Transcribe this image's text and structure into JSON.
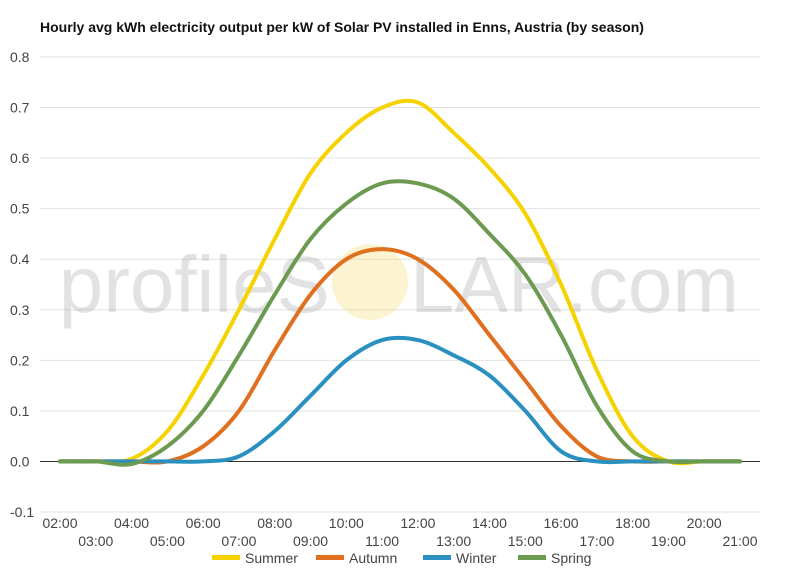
{
  "chart_data": {
    "type": "line",
    "title": "Hourly avg kWh electricity output per kW of Solar PV installed in Enns, Austria (by season)",
    "xlabel": "",
    "ylabel": "",
    "ylim": [
      -0.1,
      0.8
    ],
    "yticks": [
      "-0.1",
      "0.0",
      "0.1",
      "0.2",
      "0.3",
      "0.4",
      "0.5",
      "0.6",
      "0.7",
      "0.8"
    ],
    "x": [
      "02:00",
      "03:00",
      "04:00",
      "05:00",
      "06:00",
      "07:00",
      "08:00",
      "09:00",
      "10:00",
      "11:00",
      "12:00",
      "13:00",
      "14:00",
      "15:00",
      "16:00",
      "17:00",
      "18:00",
      "19:00",
      "20:00",
      "21:00"
    ],
    "grid": true,
    "legend": "bottom",
    "watermark": {
      "left": "profileS",
      "right": "LAR.com"
    },
    "series": [
      {
        "name": "Summer",
        "color": "#f5d200",
        "values": [
          0,
          0,
          0.005,
          0.06,
          0.17,
          0.3,
          0.44,
          0.57,
          0.65,
          0.7,
          0.71,
          0.65,
          0.58,
          0.49,
          0.35,
          0.18,
          0.05,
          0.0,
          0,
          0
        ]
      },
      {
        "name": "Autumn",
        "color": "#e07020",
        "values": [
          0,
          0,
          0,
          0,
          0.03,
          0.1,
          0.22,
          0.33,
          0.4,
          0.42,
          0.4,
          0.34,
          0.25,
          0.16,
          0.07,
          0.01,
          0,
          0,
          0,
          0
        ]
      },
      {
        "name": "Winter",
        "color": "#2a90c0",
        "values": [
          0,
          0,
          0,
          0,
          0,
          0.01,
          0.06,
          0.13,
          0.2,
          0.24,
          0.24,
          0.21,
          0.17,
          0.1,
          0.02,
          0,
          0,
          0,
          0,
          0
        ]
      },
      {
        "name": "Spring",
        "color": "#6b9a50",
        "values": [
          0,
          0,
          -0.005,
          0.03,
          0.1,
          0.21,
          0.33,
          0.44,
          0.51,
          0.55,
          0.55,
          0.52,
          0.45,
          0.37,
          0.25,
          0.11,
          0.02,
          0,
          0,
          0
        ]
      }
    ]
  }
}
